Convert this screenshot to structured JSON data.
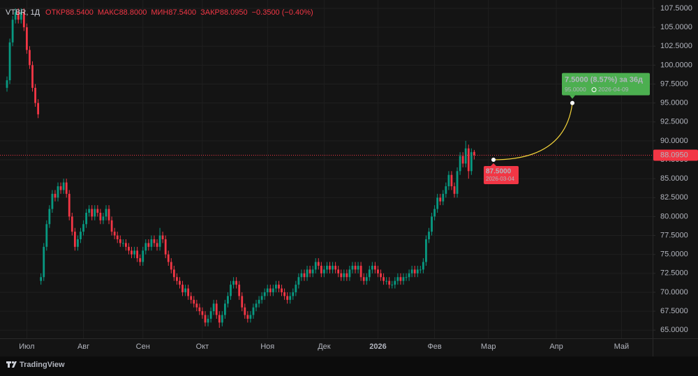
{
  "chart_data": {
    "type": "candlestick",
    "title": "VTBR, 1Д",
    "legend": [
      {
        "name": "ОТКР",
        "value": 88.54,
        "label": "88.5400"
      },
      {
        "name": "МАКС",
        "value": 88.8,
        "label": "88.8000"
      },
      {
        "name": "МИН",
        "value": 87.54,
        "label": "87.5400"
      },
      {
        "name": "ЗАКР",
        "value": 88.095,
        "label": "88.0950"
      }
    ],
    "change": {
      "value": -0.35,
      "label": "−0.3500 (−0.40%)"
    },
    "colors": {
      "up": "#089981",
      "down": "#f23645"
    },
    "categories": [
      null,
      null,
      null,
      null,
      null,
      null,
      null,
      "Июл",
      null,
      null,
      null,
      null,
      null,
      null,
      null,
      null,
      null,
      null,
      null,
      null,
      null,
      null,
      null,
      null,
      null,
      null,
      null,
      "Авг",
      null,
      null,
      null,
      null,
      null,
      null,
      null,
      null,
      null,
      null,
      null,
      null,
      null,
      null,
      null,
      null,
      null,
      null,
      null,
      null,
      "Сен",
      null,
      null,
      null,
      null,
      null,
      null,
      null,
      null,
      null,
      null,
      null,
      null,
      null,
      null,
      null,
      null,
      null,
      null,
      null,
      null,
      "Окт",
      null,
      null,
      null,
      null,
      null,
      null,
      null,
      null,
      null,
      null,
      null,
      null,
      null,
      null,
      null,
      null,
      null,
      null,
      null,
      null,
      null,
      null,
      "Ноя",
      null,
      null,
      null,
      null,
      null,
      null,
      null,
      null,
      null,
      null,
      null,
      null,
      null,
      null,
      null,
      null,
      null,
      null,
      null,
      "Дек",
      null,
      null,
      null,
      null,
      null,
      null,
      null,
      null,
      null,
      null,
      null,
      null,
      null,
      null,
      null,
      null,
      null,
      null,
      "2026",
      null,
      null,
      null,
      null,
      null,
      null,
      null,
      null,
      null,
      null,
      null,
      null,
      null,
      null,
      null,
      null,
      null,
      null,
      null,
      "Фев",
      null,
      null,
      null,
      null,
      null,
      null,
      null,
      null,
      null,
      null,
      null,
      null,
      null,
      null,
      null,
      null,
      null,
      null,
      "Мар",
      null,
      null,
      null,
      null,
      null,
      null,
      null,
      null,
      null,
      null,
      null,
      null,
      null,
      null,
      null,
      null,
      null,
      null,
      null,
      null,
      null,
      null,
      null,
      "Апр",
      null,
      null,
      null,
      null,
      null,
      null,
      null,
      null,
      null,
      null,
      null,
      null,
      null,
      null,
      null,
      null,
      null,
      null,
      null,
      null,
      null,
      null,
      "Май",
      null,
      null,
      null,
      null,
      null,
      null,
      null,
      null,
      null,
      null,
      null
    ],
    "open": [
      97,
      98,
      103,
      106,
      107,
      106,
      107,
      105,
      102,
      100,
      97,
      95,
      71.5,
      72,
      76,
      79,
      81,
      83,
      82.5,
      84,
      83.5,
      84.5,
      83,
      80,
      78,
      76,
      77,
      78,
      79,
      80.5,
      81,
      80,
      81,
      80.5,
      79.5,
      80,
      81,
      79.5,
      78,
      77.5,
      77,
      76.5,
      76.5,
      76,
      75.5,
      75,
      75.5,
      74.5,
      74,
      75.5,
      76.5,
      76,
      77,
      76.5,
      76,
      77.5,
      77,
      75,
      74,
      73,
      72,
      71.5,
      71,
      70,
      70.5,
      69.5,
      69,
      68.5,
      68,
      67.5,
      67,
      66,
      66.5,
      67.5,
      68.5,
      67,
      66,
      67,
      68.5,
      69.5,
      71,
      71.5,
      71,
      69.5,
      68,
      67,
      66.5,
      67,
      68,
      68.5,
      69,
      69.5,
      70,
      70.5,
      70,
      70.5,
      71,
      70.5,
      70,
      69.5,
      69,
      69.5,
      70,
      71,
      72,
      72.5,
      72,
      73,
      72.5,
      73,
      74,
      73.5,
      72.5,
      73,
      73.5,
      73,
      73.5,
      73,
      72.5,
      72,
      72.5,
      72,
      73,
      73.5,
      73,
      73.5,
      72,
      71.5,
      72,
      73,
      73.5,
      73,
      72.5,
      72,
      71.5,
      71.5,
      71,
      71,
      71.5,
      72,
      71.5,
      72,
      72,
      72.5,
      73,
      72.5,
      73,
      73,
      74,
      77,
      78,
      80,
      81,
      82.5,
      82,
      83,
      84,
      85.5,
      84,
      83,
      86,
      88,
      87,
      89,
      86,
      88.54,
      null,
      null,
      null,
      null,
      null,
      null,
      null,
      null,
      null,
      null,
      null,
      null,
      null,
      null,
      null,
      null,
      null,
      null,
      null,
      null,
      null,
      null,
      null,
      null,
      null,
      null,
      null,
      null,
      null,
      null,
      null,
      null,
      null,
      null,
      null,
      null,
      null,
      null,
      null,
      null,
      null,
      null,
      null,
      null,
      null,
      null,
      null,
      null,
      null,
      null,
      null,
      null,
      null,
      null,
      null,
      null,
      null,
      null,
      null,
      null,
      null,
      null,
      null
    ],
    "high": [
      98.5,
      103.5,
      106.5,
      107.5,
      107.5,
      107.5,
      107.5,
      105.5,
      102.5,
      100.5,
      97.5,
      95.5,
      72.5,
      76.5,
      79.5,
      81.5,
      83.5,
      83.5,
      84.5,
      84.5,
      85,
      85,
      83.5,
      80.5,
      78.5,
      77.5,
      78.5,
      79.5,
      81,
      81.5,
      81.5,
      81.5,
      81.5,
      81,
      80.5,
      81.5,
      81.5,
      80,
      78.5,
      78,
      77.5,
      77,
      77,
      76.5,
      76,
      76,
      76,
      75,
      76,
      77,
      77,
      77.5,
      77.5,
      77,
      78.5,
      78,
      77.5,
      75.5,
      74.5,
      73.5,
      72.5,
      72,
      71.5,
      71,
      71,
      70,
      69.5,
      69,
      68.5,
      68,
      67.5,
      67,
      68,
      69,
      69,
      67.5,
      67.5,
      69,
      70,
      71.5,
      72,
      72,
      71.5,
      70,
      68.5,
      67.5,
      67.5,
      68.5,
      69,
      69.5,
      70,
      70.5,
      71,
      71,
      71,
      71.5,
      71.5,
      71,
      70.5,
      70,
      70,
      70.5,
      71.5,
      72.5,
      73,
      73,
      73.5,
      73.5,
      73.5,
      74.5,
      74.5,
      74,
      73.5,
      74,
      74,
      74,
      74,
      73.5,
      73,
      73,
      73,
      73.5,
      74,
      74,
      74,
      74,
      72.5,
      72.5,
      73.5,
      74,
      74,
      73.5,
      73,
      72.5,
      72,
      72,
      71.5,
      72,
      72.5,
      72.5,
      72.5,
      72.5,
      73,
      73.5,
      73.5,
      73.5,
      73.5,
      74.5,
      77.5,
      78.5,
      80.5,
      81.5,
      83,
      83,
      83.5,
      84.5,
      86,
      86,
      84.5,
      86.5,
      88.5,
      88.5,
      90,
      89.5,
      89,
      88.8,
      null,
      null,
      null,
      null,
      null,
      null,
      null,
      null,
      null,
      null,
      null,
      null,
      null,
      null,
      null,
      null,
      null,
      null,
      null,
      null,
      null,
      null,
      null,
      null,
      null,
      null,
      null,
      null,
      null,
      null,
      null,
      null,
      null,
      null,
      null,
      null,
      null,
      null,
      null,
      null,
      null,
      null,
      null,
      null,
      null,
      null,
      null,
      null,
      null,
      null,
      null,
      null,
      null,
      null,
      null,
      null,
      null,
      null,
      null,
      null,
      null,
      null,
      null
    ],
    "low": [
      96.5,
      97.5,
      102.5,
      105.5,
      105.5,
      105.5,
      104.5,
      101.5,
      99.5,
      96.5,
      94.5,
      93,
      71,
      71.5,
      75.5,
      78.5,
      80.5,
      82,
      82,
      83,
      83,
      82.5,
      79.5,
      77.5,
      75.5,
      75.5,
      76.5,
      77.5,
      78.5,
      80,
      79.5,
      79.5,
      80,
      79,
      79,
      79.5,
      79,
      77.5,
      77,
      76.5,
      76,
      76,
      75.5,
      75,
      74.5,
      74.5,
      74,
      73.5,
      73.5,
      75,
      75.5,
      75.5,
      76,
      75.5,
      75.5,
      76.5,
      74.5,
      73.5,
      72.5,
      71.5,
      71,
      70.5,
      69.5,
      69.5,
      69,
      68.5,
      68,
      67.5,
      67,
      66.5,
      65.5,
      65.5,
      66,
      67,
      66.5,
      65.3,
      65.5,
      66.5,
      68,
      69,
      70.5,
      70.5,
      69,
      67.5,
      66.5,
      66,
      66,
      66.5,
      67.5,
      68,
      68.5,
      69,
      69.5,
      69.5,
      69.5,
      70,
      70,
      69.5,
      69,
      68.5,
      68.5,
      69,
      69.5,
      70.5,
      71.5,
      71.5,
      71.5,
      72,
      72,
      72.5,
      73,
      72,
      72,
      72.5,
      72.5,
      72.5,
      72.5,
      72,
      71.5,
      71.5,
      71.5,
      71.5,
      72.5,
      72.5,
      72.5,
      71.5,
      71,
      71,
      71.5,
      72.5,
      72.5,
      72,
      71.5,
      71,
      71,
      70.5,
      70.5,
      70.5,
      71,
      71,
      71,
      71.5,
      71.5,
      72,
      72,
      72,
      72.5,
      72.5,
      73.5,
      76.5,
      77.5,
      79.5,
      80.5,
      81.5,
      81.5,
      82.5,
      83.5,
      83.5,
      82.5,
      82.5,
      85.5,
      86.5,
      86.5,
      85,
      85.5,
      87.54,
      null,
      null,
      null,
      null,
      null,
      null,
      null,
      null,
      null,
      null,
      null,
      null,
      null,
      null,
      null,
      null,
      null,
      null,
      null,
      null,
      null,
      null,
      null,
      null,
      null,
      null,
      null,
      null,
      null,
      null,
      null,
      null,
      null,
      null,
      null,
      null,
      null,
      null,
      null,
      null,
      null,
      null,
      null,
      null,
      null,
      null,
      null,
      null,
      null,
      null,
      null,
      null,
      null,
      null,
      null,
      null,
      null,
      null,
      null,
      null,
      null,
      null,
      null
    ],
    "close": [
      98,
      103,
      106,
      107,
      106,
      107,
      105,
      102,
      100,
      97,
      95,
      93.5,
      72,
      76,
      79,
      81,
      83,
      82.5,
      84,
      83.5,
      84.5,
      83,
      80,
      78,
      76,
      77,
      78,
      79,
      80.5,
      81,
      80,
      81,
      80.5,
      79.5,
      80,
      81,
      79.5,
      78,
      77.5,
      77,
      76.5,
      76.5,
      76,
      75.5,
      75,
      75.5,
      74.5,
      74,
      75.5,
      76.5,
      76,
      77,
      76.5,
      76,
      77.5,
      77,
      75,
      74,
      73,
      72,
      71.5,
      71,
      70,
      70.5,
      69.5,
      69,
      68.5,
      68,
      67.5,
      67,
      66,
      66.5,
      67.5,
      68.5,
      67,
      66,
      67,
      68.5,
      69.5,
      71,
      71.5,
      71,
      69.5,
      68,
      67,
      66.5,
      67,
      68,
      68.5,
      69,
      69.5,
      70,
      70.5,
      70,
      70.5,
      71,
      70.5,
      70,
      69.5,
      69,
      69.5,
      70,
      71,
      72,
      72.5,
      72,
      73,
      72.5,
      73,
      74,
      73.5,
      72.5,
      73,
      73.5,
      73,
      73.5,
      73,
      72.5,
      72,
      72.5,
      72,
      73,
      73.5,
      73,
      73.5,
      72,
      71.5,
      72,
      73,
      73.5,
      73,
      72.5,
      72,
      71.5,
      71.5,
      71,
      71,
      71.5,
      72,
      71.5,
      72,
      72,
      72.5,
      73,
      72.5,
      73,
      73,
      74,
      77,
      78,
      80,
      81,
      82.5,
      82,
      83,
      84,
      85.5,
      84,
      83,
      86,
      88,
      87,
      89,
      86,
      88.5,
      88.095,
      null,
      null,
      null,
      null,
      null,
      null,
      null,
      null,
      null,
      null,
      null,
      null,
      null,
      null,
      null,
      null,
      null,
      null,
      null,
      null,
      null,
      null,
      null,
      null,
      null,
      null,
      null,
      null,
      null,
      null,
      null,
      null,
      null,
      null,
      null,
      null,
      null,
      null,
      null,
      null,
      null,
      null,
      null,
      null,
      null,
      null,
      null,
      null,
      null,
      null,
      null,
      null,
      null,
      null,
      null,
      null,
      null,
      null,
      null,
      null,
      null,
      null,
      null
    ],
    "ylim": [
      64.1,
      108.6
    ],
    "yticks": [
      {
        "value": 65,
        "label": "65.0000"
      },
      {
        "value": 67.5,
        "label": "67.5000"
      },
      {
        "value": 70,
        "label": "70.0000"
      },
      {
        "value": 72.5,
        "label": "72.5000"
      },
      {
        "value": 75,
        "label": "75.0000"
      },
      {
        "value": 77.5,
        "label": "77.5000"
      },
      {
        "value": 80,
        "label": "80.0000"
      },
      {
        "value": 82.5,
        "label": "82.5000"
      },
      {
        "value": 85,
        "label": "85.0000"
      },
      {
        "value": 87.5,
        "label": "87.5000"
      },
      {
        "value": 90,
        "label": "90.0000"
      },
      {
        "value": 92.5,
        "label": "92.5000"
      },
      {
        "value": 95,
        "label": "95.0000"
      },
      {
        "value": 97.5,
        "label": "97.5000"
      },
      {
        "value": 100,
        "label": "100.0000"
      },
      {
        "value": 102.5,
        "label": "102.5000"
      },
      {
        "value": 105,
        "label": "105.0000"
      },
      {
        "value": 107.5,
        "label": "107.5000"
      }
    ],
    "grid": true,
    "last_price": {
      "value": 88.095,
      "label": "88.0950",
      "color": "#f23645"
    },
    "forecast": {
      "color": "#f5d53b",
      "start": {
        "value": 87.5,
        "label": "87.5000",
        "date": "2026-03-04",
        "color": "#f23645"
      },
      "end": {
        "value": 95,
        "label": "95.0000",
        "date": "2026-04-09",
        "color": "#4caf50"
      },
      "change": {
        "value": 7.5,
        "label": "7.5000 (8.57%) за 36д"
      }
    }
  },
  "footer": {
    "brand": "TradingView"
  }
}
